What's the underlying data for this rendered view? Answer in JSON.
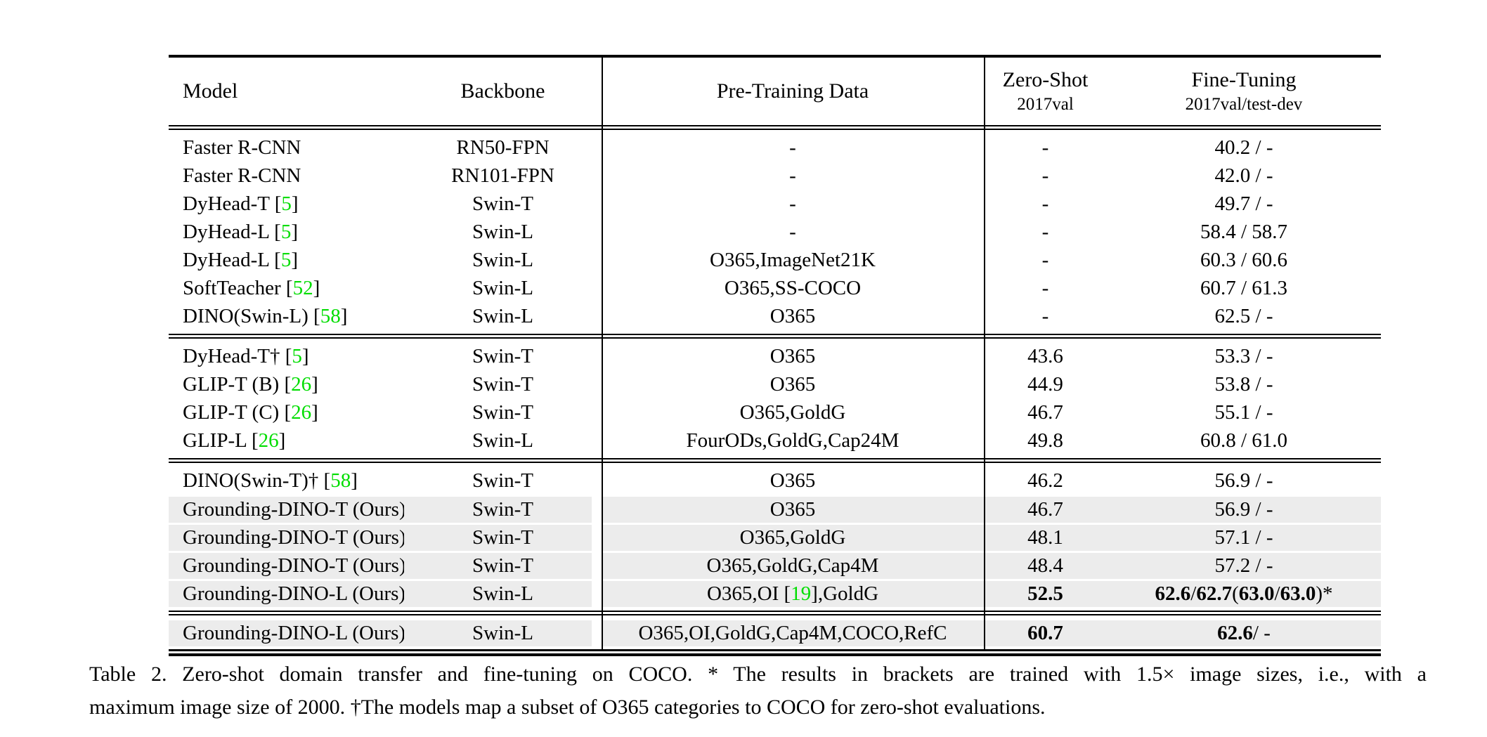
{
  "colors": {
    "citation_green": "#00dd00",
    "highlight_gray": "#ececec",
    "rule_black": "#000000"
  },
  "table": {
    "header": {
      "model": "Model",
      "backbone": "Backbone",
      "pretrain": "Pre-Training Data",
      "zero_shot_line1": "Zero-Shot",
      "zero_shot_line2": "2017val",
      "fine_tuning_line1": "Fine-Tuning",
      "fine_tuning_line2": "2017val/test-dev"
    },
    "sections": [
      {
        "rows": [
          {
            "model": "Faster R-CNN",
            "backbone": "RN50-FPN",
            "pretrain": "-",
            "zs": "-",
            "ft": "40.2 / -",
            "hl": false,
            "emph": false
          },
          {
            "model": "Faster R-CNN",
            "backbone": "RN101-FPN",
            "pretrain": "-",
            "zs": "-",
            "ft": "42.0 / -",
            "hl": false,
            "emph": false
          },
          {
            "model": "DyHead-T [5]",
            "backbone": "Swin-T",
            "pretrain": "-",
            "zs": "-",
            "ft": "49.7 / -",
            "hl": false,
            "emph": false
          },
          {
            "model": "DyHead-L [5]",
            "backbone": "Swin-L",
            "pretrain": "-",
            "zs": "-",
            "ft": "58.4 / 58.7",
            "hl": false,
            "emph": false
          },
          {
            "model": "DyHead-L [5]",
            "backbone": "Swin-L",
            "pretrain": "O365,ImageNet21K",
            "zs": "-",
            "ft": "60.3 / 60.6",
            "hl": false,
            "emph": false
          },
          {
            "model": "SoftTeacher [52]",
            "backbone": "Swin-L",
            "pretrain": "O365,SS-COCO",
            "zs": "-",
            "ft": "60.7 / 61.3",
            "hl": false,
            "emph": false
          },
          {
            "model": "DINO(Swin-L) [58]",
            "backbone": "Swin-L",
            "pretrain": "O365",
            "zs": "-",
            "ft": "62.5 / -",
            "hl": false,
            "emph": false
          }
        ]
      },
      {
        "rows": [
          {
            "model": "DyHead-T† [5]",
            "backbone": "Swin-T",
            "pretrain": "O365",
            "zs": "43.6",
            "ft": "53.3 / -",
            "hl": false,
            "emph": false
          },
          {
            "model": "GLIP-T (B) [26]",
            "backbone": "Swin-T",
            "pretrain": "O365",
            "zs": "44.9",
            "ft": "53.8 / -",
            "hl": false,
            "emph": false
          },
          {
            "model": "GLIP-T (C) [26]",
            "backbone": "Swin-T",
            "pretrain": "O365,GoldG",
            "zs": "46.7",
            "ft": "55.1 / -",
            "hl": false,
            "emph": false
          },
          {
            "model": "GLIP-L [26]",
            "backbone": "Swin-L",
            "pretrain": "FourODs,GoldG,Cap24M",
            "zs": "49.8",
            "ft": "60.8 / 61.0",
            "hl": false,
            "emph": false
          }
        ]
      },
      {
        "rows": [
          {
            "model": "DINO(Swin-T)† [58]",
            "backbone": "Swin-T",
            "pretrain": "O365",
            "zs": "46.2",
            "ft": "56.9 / -",
            "hl": false,
            "emph": false
          },
          {
            "model": "Grounding-DINO-T (Ours)",
            "backbone": "Swin-T",
            "pretrain": "O365",
            "zs": "46.7",
            "ft": "56.9 / -",
            "hl": true,
            "emph": false
          },
          {
            "model": "Grounding-DINO-T (Ours)",
            "backbone": "Swin-T",
            "pretrain": "O365,GoldG",
            "zs": "48.1",
            "ft": "57.1 / -",
            "hl": true,
            "emph": false
          },
          {
            "model": "Grounding-DINO-T (Ours)",
            "backbone": "Swin-T",
            "pretrain": "O365,GoldG,Cap4M",
            "zs": "48.4",
            "ft": "57.2 / -",
            "hl": true,
            "emph": false
          },
          {
            "model": "Grounding-DINO-L (Ours)",
            "backbone": "Swin-L",
            "pretrain": "O365,OI [19],GoldG",
            "zs": "52.5",
            "ft": "62.6 / 62.7 (63.0 / 63.0)*",
            "hl": true,
            "emph": true
          }
        ]
      },
      {
        "rows": [
          {
            "model": "Grounding-DINO-L (Ours)",
            "backbone": "Swin-L",
            "pretrain": "O365,OI,GoldG,Cap4M,COCO,RefC",
            "zs": "60.7",
            "ft": "62.6 / -",
            "hl": true,
            "emph": true
          }
        ]
      }
    ]
  },
  "caption": {
    "line1": "Table 2.  Zero-shot domain transfer and fine-tuning on COCO. * The results in brackets are trained with 1.5× image sizes, i.e., with a",
    "line2": "maximum image size of 2000. †The models map a subset of O365 categories to COCO for zero-shot evaluations."
  }
}
